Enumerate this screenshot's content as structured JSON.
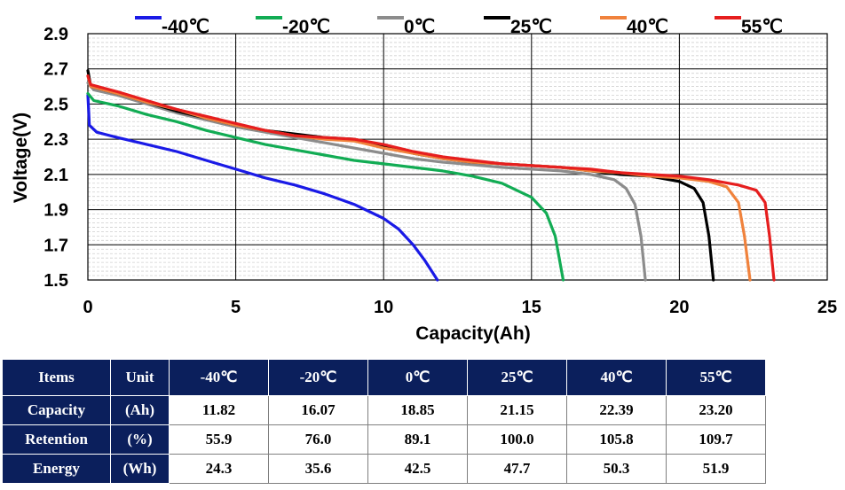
{
  "chart_data": {
    "type": "line",
    "title": "",
    "xlabel": "Capacity(Ah)",
    "ylabel": "Voltage(V)",
    "xlim": [
      0,
      25
    ],
    "ylim": [
      1.5,
      2.9
    ],
    "x_ticks": [
      "0",
      "5",
      "10",
      "15",
      "20",
      "25"
    ],
    "y_ticks": [
      "1.5",
      "1.7",
      "1.9",
      "2.1",
      "2.3",
      "2.5",
      "2.7",
      "2.9"
    ],
    "grid": true,
    "legend_position": "top",
    "series": [
      {
        "name": "-40℃",
        "color": "#1a1ae6",
        "points": [
          [
            0,
            2.55
          ],
          [
            0.05,
            2.38
          ],
          [
            0.3,
            2.34
          ],
          [
            1,
            2.31
          ],
          [
            2,
            2.27
          ],
          [
            3,
            2.23
          ],
          [
            4,
            2.18
          ],
          [
            5,
            2.13
          ],
          [
            6,
            2.08
          ],
          [
            7,
            2.04
          ],
          [
            8,
            1.99
          ],
          [
            9,
            1.93
          ],
          [
            10,
            1.85
          ],
          [
            10.5,
            1.79
          ],
          [
            11,
            1.7
          ],
          [
            11.4,
            1.61
          ],
          [
            11.82,
            1.5
          ]
        ]
      },
      {
        "name": "-20℃",
        "color": "#12ac54",
        "points": [
          [
            0,
            2.56
          ],
          [
            0.2,
            2.52
          ],
          [
            1,
            2.49
          ],
          [
            2,
            2.44
          ],
          [
            3,
            2.4
          ],
          [
            4,
            2.35
          ],
          [
            5,
            2.31
          ],
          [
            6,
            2.27
          ],
          [
            7,
            2.24
          ],
          [
            8,
            2.21
          ],
          [
            9,
            2.18
          ],
          [
            10,
            2.16
          ],
          [
            11,
            2.14
          ],
          [
            12,
            2.12
          ],
          [
            13,
            2.09
          ],
          [
            14,
            2.05
          ],
          [
            15,
            1.97
          ],
          [
            15.5,
            1.88
          ],
          [
            15.8,
            1.75
          ],
          [
            16.07,
            1.5
          ]
        ]
      },
      {
        "name": "0℃",
        "color": "#8c8c8c",
        "points": [
          [
            0,
            2.62
          ],
          [
            0.2,
            2.58
          ],
          [
            1,
            2.55
          ],
          [
            2,
            2.5
          ],
          [
            3,
            2.45
          ],
          [
            4,
            2.41
          ],
          [
            5,
            2.37
          ],
          [
            6,
            2.34
          ],
          [
            7,
            2.31
          ],
          [
            8,
            2.28
          ],
          [
            9,
            2.25
          ],
          [
            10,
            2.22
          ],
          [
            11,
            2.19
          ],
          [
            12,
            2.17
          ],
          [
            13,
            2.155
          ],
          [
            14,
            2.14
          ],
          [
            15,
            2.13
          ],
          [
            16,
            2.12
          ],
          [
            17,
            2.1
          ],
          [
            17.8,
            2.07
          ],
          [
            18.2,
            2.02
          ],
          [
            18.5,
            1.93
          ],
          [
            18.7,
            1.75
          ],
          [
            18.85,
            1.5
          ]
        ]
      },
      {
        "name": "25℃",
        "color": "#000000",
        "points": [
          [
            0,
            2.69
          ],
          [
            0.1,
            2.6
          ],
          [
            1,
            2.56
          ],
          [
            2,
            2.51
          ],
          [
            3,
            2.46
          ],
          [
            4,
            2.42
          ],
          [
            5,
            2.38
          ],
          [
            6,
            2.35
          ],
          [
            7,
            2.33
          ],
          [
            8,
            2.31
          ],
          [
            9,
            2.3
          ],
          [
            10,
            2.26
          ],
          [
            11,
            2.22
          ],
          [
            12,
            2.19
          ],
          [
            13,
            2.17
          ],
          [
            14,
            2.16
          ],
          [
            15,
            2.15
          ],
          [
            16,
            2.14
          ],
          [
            17,
            2.12
          ],
          [
            18,
            2.1
          ],
          [
            19,
            2.09
          ],
          [
            20,
            2.06
          ],
          [
            20.5,
            2.02
          ],
          [
            20.8,
            1.94
          ],
          [
            21.0,
            1.75
          ],
          [
            21.15,
            1.5
          ]
        ]
      },
      {
        "name": "40℃",
        "color": "#f0823c",
        "points": [
          [
            0,
            2.66
          ],
          [
            0.1,
            2.6
          ],
          [
            1,
            2.56
          ],
          [
            2,
            2.51
          ],
          [
            3,
            2.47
          ],
          [
            4,
            2.42
          ],
          [
            5,
            2.38
          ],
          [
            6,
            2.35
          ],
          [
            7,
            2.32
          ],
          [
            8,
            2.3
          ],
          [
            9,
            2.29
          ],
          [
            10,
            2.25
          ],
          [
            11,
            2.22
          ],
          [
            12,
            2.19
          ],
          [
            13,
            2.17
          ],
          [
            14,
            2.16
          ],
          [
            15,
            2.15
          ],
          [
            16,
            2.14
          ],
          [
            17,
            2.12
          ],
          [
            18,
            2.11
          ],
          [
            19,
            2.09
          ],
          [
            20,
            2.08
          ],
          [
            21,
            2.06
          ],
          [
            21.6,
            2.03
          ],
          [
            22.0,
            1.94
          ],
          [
            22.2,
            1.75
          ],
          [
            22.39,
            1.5
          ]
        ]
      },
      {
        "name": "55℃",
        "color": "#e61e1e",
        "points": [
          [
            0,
            2.66
          ],
          [
            0.1,
            2.61
          ],
          [
            1,
            2.57
          ],
          [
            2,
            2.52
          ],
          [
            3,
            2.47
          ],
          [
            4,
            2.43
          ],
          [
            5,
            2.39
          ],
          [
            6,
            2.35
          ],
          [
            7,
            2.32
          ],
          [
            8,
            2.31
          ],
          [
            9,
            2.3
          ],
          [
            10,
            2.27
          ],
          [
            11,
            2.23
          ],
          [
            12,
            2.2
          ],
          [
            13,
            2.18
          ],
          [
            14,
            2.16
          ],
          [
            15,
            2.15
          ],
          [
            16,
            2.14
          ],
          [
            17,
            2.13
          ],
          [
            18,
            2.11
          ],
          [
            19,
            2.1
          ],
          [
            20,
            2.09
          ],
          [
            21,
            2.07
          ],
          [
            22,
            2.04
          ],
          [
            22.6,
            2.01
          ],
          [
            22.9,
            1.94
          ],
          [
            23.05,
            1.75
          ],
          [
            23.2,
            1.5
          ]
        ]
      }
    ]
  },
  "table": {
    "headers": [
      "Items",
      "Unit",
      "-40℃",
      "-20℃",
      "0℃",
      "25℃",
      "40℃",
      "55℃"
    ],
    "rows": [
      {
        "item": "Capacity",
        "unit": "(Ah)",
        "values": [
          "11.82",
          "16.07",
          "18.85",
          "21.15",
          "22.39",
          "23.20"
        ]
      },
      {
        "item": "Retention",
        "unit": "(%)",
        "values": [
          "55.9",
          "76.0",
          "89.1",
          "100.0",
          "105.8",
          "109.7"
        ]
      },
      {
        "item": "Energy",
        "unit": "(Wh)",
        "values": [
          "24.3",
          "35.6",
          "42.5",
          "47.7",
          "50.3",
          "51.9"
        ]
      }
    ]
  }
}
